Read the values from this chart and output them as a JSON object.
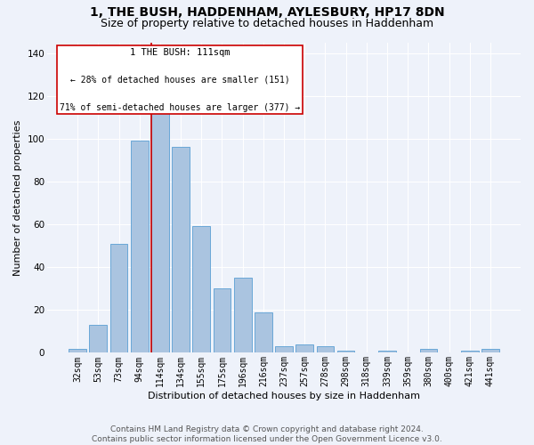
{
  "title": "1, THE BUSH, HADDENHAM, AYLESBURY, HP17 8DN",
  "subtitle": "Size of property relative to detached houses in Haddenham",
  "xlabel": "Distribution of detached houses by size in Haddenham",
  "ylabel": "Number of detached properties",
  "footer_line1": "Contains HM Land Registry data © Crown copyright and database right 2024.",
  "footer_line2": "Contains public sector information licensed under the Open Government Licence v3.0.",
  "categories": [
    "32sqm",
    "53sqm",
    "73sqm",
    "94sqm",
    "114sqm",
    "134sqm",
    "155sqm",
    "175sqm",
    "196sqm",
    "216sqm",
    "237sqm",
    "257sqm",
    "278sqm",
    "298sqm",
    "318sqm",
    "339sqm",
    "359sqm",
    "380sqm",
    "400sqm",
    "421sqm",
    "441sqm"
  ],
  "values": [
    2,
    13,
    51,
    99,
    116,
    96,
    59,
    30,
    35,
    19,
    3,
    4,
    3,
    1,
    0,
    1,
    0,
    2,
    0,
    1,
    2
  ],
  "bar_color": "#aac4e0",
  "bar_edge_color": "#5a9fd4",
  "bg_color": "#eef2fa",
  "grid_color": "#ffffff",
  "property_line_color": "#cc0000",
  "property_line_bin": 4,
  "property_label": "1 THE BUSH: 111sqm",
  "annotation_line1": "← 28% of detached houses are smaller (151)",
  "annotation_line2": "71% of semi-detached houses are larger (377) →",
  "annotation_box_color": "#ffffff",
  "annotation_box_edge": "#cc0000",
  "ylim": [
    0,
    145
  ],
  "title_fontsize": 10,
  "subtitle_fontsize": 9,
  "label_fontsize": 8,
  "tick_fontsize": 7,
  "footer_fontsize": 6.5,
  "annot_fontsize": 7
}
